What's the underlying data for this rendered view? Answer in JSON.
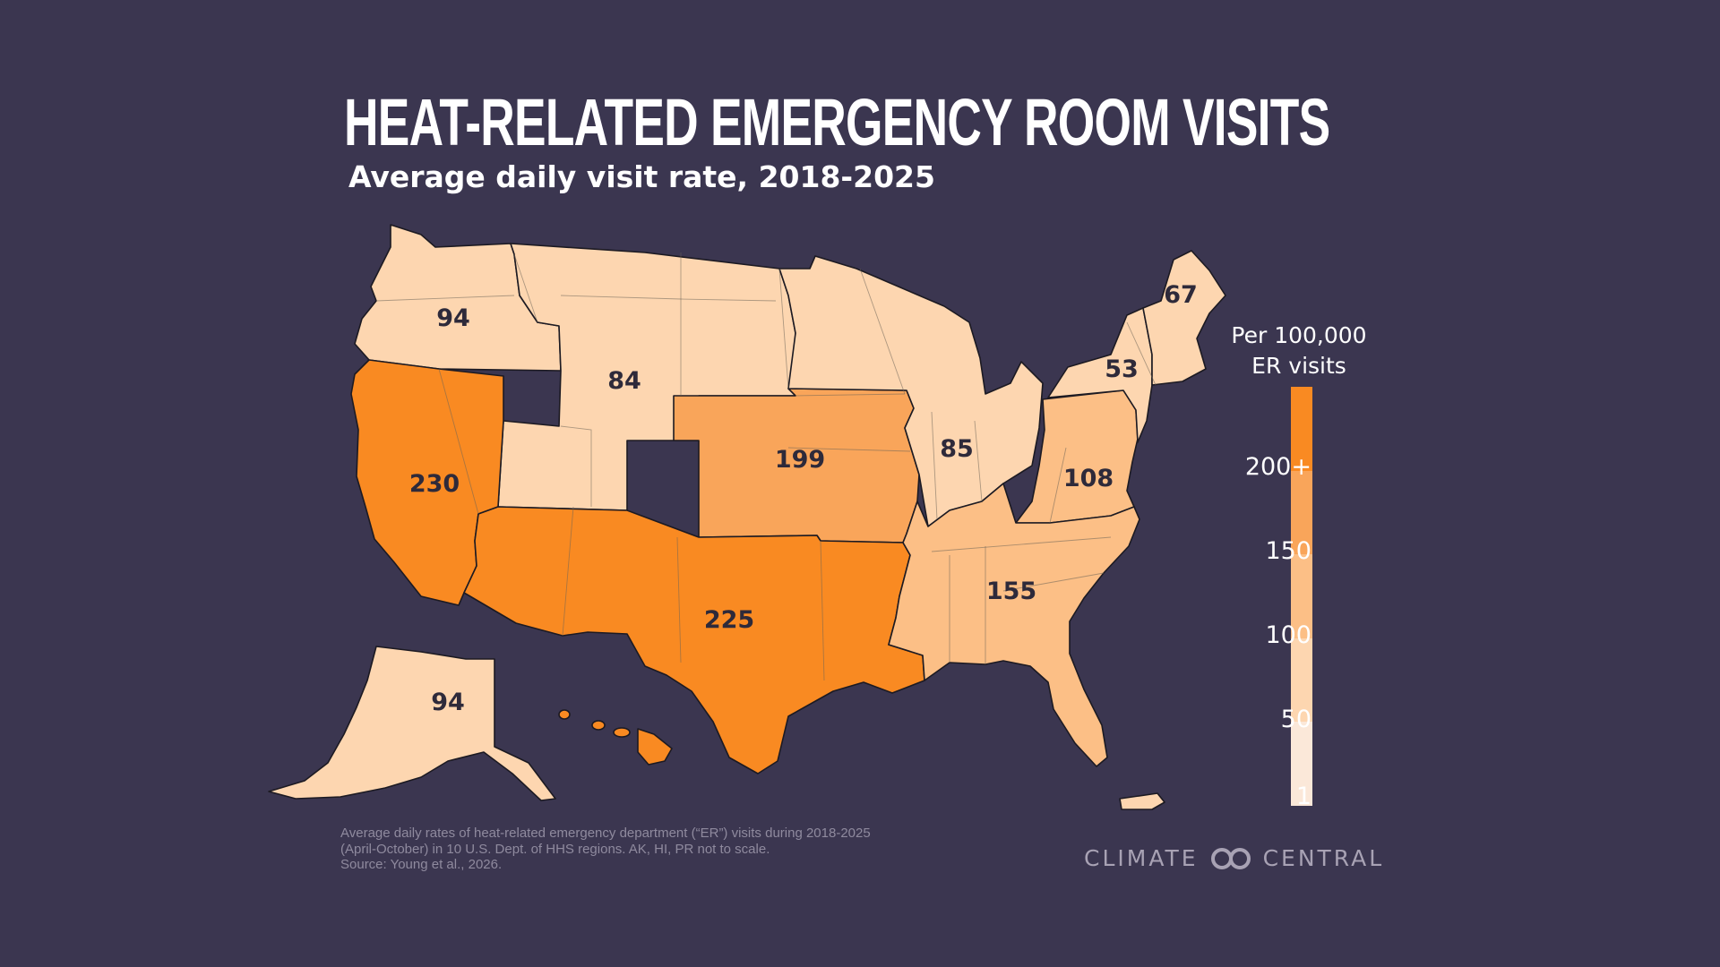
{
  "title": "HEAT-RELATED EMERGENCY ROOM VISITS",
  "subtitle": "Average daily visit rate, 2018-2025",
  "legend": {
    "title_line1": "Per 100,000",
    "title_line2": "ER visits",
    "ticks": [
      "200+",
      "150",
      "100",
      "50",
      "1"
    ],
    "colors": [
      "#fbe8d9",
      "#fdd6b0",
      "#fcbf86",
      "#f9a55a",
      "#f98a22"
    ]
  },
  "regions": [
    {
      "id": "northwest",
      "value": "94",
      "color": "#fdd6b0"
    },
    {
      "id": "mountain",
      "value": "84",
      "color": "#fdd6b0"
    },
    {
      "id": "central",
      "value": "199",
      "color": "#f9a55a"
    },
    {
      "id": "great-lakes",
      "value": "85",
      "color": "#fdd6b0"
    },
    {
      "id": "mid-atlantic",
      "value": "108",
      "color": "#fcbf86"
    },
    {
      "id": "new-york",
      "value": "53",
      "color": "#fdd6b0"
    },
    {
      "id": "new-england",
      "value": "67",
      "color": "#fdd6b0"
    },
    {
      "id": "southeast",
      "value": "155",
      "color": "#fcbf86"
    },
    {
      "id": "south-central",
      "value": "225",
      "color": "#f98a22"
    },
    {
      "id": "pacific",
      "value": "230",
      "color": "#f98a22"
    },
    {
      "id": "alaska",
      "value": "94",
      "color": "#fdd6b0"
    }
  ],
  "labels": {
    "northwest": "94",
    "mountain": "84",
    "central": "199",
    "great_lakes": "85",
    "mid_atlantic": "108",
    "new_york": "53",
    "new_england": "67",
    "southeast": "155",
    "south_central": "225",
    "pacific": "230",
    "alaska": "94"
  },
  "footnote": {
    "line1": "Average daily rates of heat-related emergency department (“ER”) visits during 2018-2025",
    "line2": "(April-October) in 10 U.S. Dept. of HHS regions. AK, HI, PR not to scale.",
    "line3": "Source: Young et al., 2026."
  },
  "brand": {
    "left": "CLIMATE",
    "right": "CENTRAL",
    "icon": "climate-central-logo-icon"
  }
}
